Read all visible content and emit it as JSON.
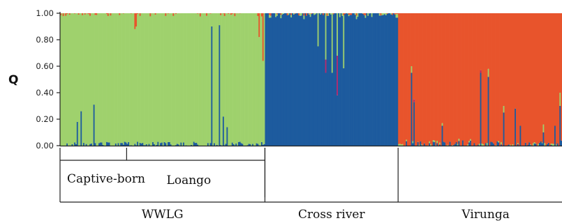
{
  "chart_data": {
    "type": "bar",
    "subtype": "stacked-admixture",
    "ylabel": "Q",
    "ylim": [
      0,
      1
    ],
    "yticks": [
      "0.00",
      "0.20",
      "0.40",
      "0.60",
      "0.80",
      "1.00"
    ],
    "colors": {
      "green": "#9fd16d",
      "blue": "#1d5b9e",
      "orange": "#e8542c",
      "magenta": "#b72a6e"
    },
    "groups": [
      {
        "label": "WWLG",
        "n": 160,
        "dominant": "green"
      },
      {
        "label": "Cross river",
        "n": 104,
        "dominant": "blue"
      },
      {
        "label": "Virunga",
        "n": 128,
        "dominant": "orange"
      }
    ],
    "subgroups": [
      {
        "label": "Captive-born",
        "parent": "WWLG",
        "n": 52
      },
      {
        "label": "Loango",
        "parent": "WWLG",
        "n": 108
      }
    ],
    "notable_individuals": [
      {
        "group": "WWLG",
        "index": 13,
        "blue": 0.18
      },
      {
        "group": "WWLG",
        "index": 16,
        "blue": 0.26
      },
      {
        "group": "WWLG",
        "index": 26,
        "blue": 0.31
      },
      {
        "group": "WWLG",
        "index": 58,
        "orange": 0.12
      },
      {
        "group": "WWLG",
        "index": 59,
        "orange": 0.1
      },
      {
        "group": "WWLG",
        "index": 118,
        "blue": 0.9
      },
      {
        "group": "WWLG",
        "index": 124,
        "blue": 0.91
      },
      {
        "group": "WWLG",
        "index": 127,
        "blue": 0.22
      },
      {
        "group": "WWLG",
        "index": 130,
        "blue": 0.14
      },
      {
        "group": "WWLG",
        "index": 155,
        "orange": 0.18
      },
      {
        "group": "WWLG",
        "index": 158,
        "orange": 0.36
      },
      {
        "group": "Cross river",
        "index": 41,
        "green": 0.25
      },
      {
        "group": "Cross river",
        "index": 47,
        "green": 0.35,
        "magenta": 0.1
      },
      {
        "group": "Cross river",
        "index": 52,
        "green": 0.45
      },
      {
        "group": "Cross river",
        "index": 56,
        "green": 0.32,
        "magenta": 0.3
      },
      {
        "group": "Cross river",
        "index": 61,
        "green": 0.4
      },
      {
        "group": "Virunga",
        "index": 10,
        "blue": 0.55,
        "green": 0.05
      },
      {
        "group": "Virunga",
        "index": 12,
        "blue": 0.33,
        "magenta": 0.02
      },
      {
        "group": "Virunga",
        "index": 34,
        "blue": 0.15,
        "green": 0.02
      },
      {
        "group": "Virunga",
        "index": 64,
        "blue": 0.55,
        "magenta": 0.02
      },
      {
        "group": "Virunga",
        "index": 70,
        "blue": 0.52,
        "green": 0.06
      },
      {
        "group": "Virunga",
        "index": 82,
        "blue": 0.25,
        "green": 0.05
      },
      {
        "group": "Virunga",
        "index": 91,
        "blue": 0.28
      },
      {
        "group": "Virunga",
        "index": 95,
        "blue": 0.15
      },
      {
        "group": "Virunga",
        "index": 113,
        "blue": 0.1,
        "green": 0.06
      },
      {
        "group": "Virunga",
        "index": 122,
        "blue": 0.15
      },
      {
        "group": "Virunga",
        "index": 126,
        "blue": 0.3,
        "green": 0.1
      }
    ]
  }
}
